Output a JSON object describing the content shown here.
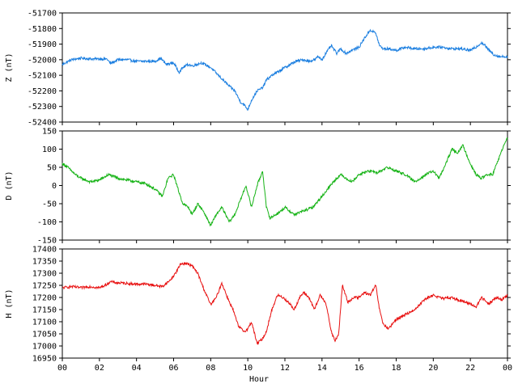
{
  "chart_data": [
    {
      "type": "line",
      "ylabel": "Z (nT)",
      "color": "#1c7fe0",
      "ylim": [
        -52400,
        -51700
      ],
      "yticks": [
        -51700,
        -51800,
        -51900,
        -52000,
        -52100,
        -52200,
        -52300,
        -52400
      ],
      "series": [
        {
          "x": [
            0,
            0.5,
            1,
            1.5,
            2,
            2.4,
            2.6,
            3,
            3.5,
            4,
            4.5,
            5,
            5.3,
            5.6,
            6,
            6.3,
            6.5,
            6.8,
            7,
            7.5,
            8,
            8.5,
            9,
            9.3,
            9.6,
            9.8,
            10,
            10.2,
            10.5,
            10.8,
            11,
            11.3,
            11.6,
            12,
            12.3,
            12.6,
            13,
            13.3,
            13.6,
            13.8,
            14,
            14.2,
            14.5,
            14.8,
            15,
            15.3,
            15.6,
            16,
            16.3,
            16.6,
            16.9,
            17.1,
            17.3,
            17.6,
            18,
            18.5,
            19,
            19.5,
            20,
            20.5,
            21,
            21.5,
            22,
            22.3,
            22.6,
            22.8,
            23,
            23.3,
            23.6,
            24
          ],
          "values": [
            -52030,
            -52000,
            -51990,
            -51995,
            -51995,
            -51995,
            -52025,
            -52000,
            -52000,
            -52010,
            -52010,
            -52010,
            -51990,
            -52030,
            -52020,
            -52080,
            -52050,
            -52030,
            -52040,
            -52020,
            -52050,
            -52110,
            -52170,
            -52200,
            -52270,
            -52290,
            -52320,
            -52260,
            -52200,
            -52180,
            -52130,
            -52100,
            -52080,
            -52050,
            -52030,
            -52010,
            -52000,
            -52010,
            -52000,
            -51980,
            -52000,
            -51960,
            -51910,
            -51960,
            -51930,
            -51960,
            -51940,
            -51920,
            -51860,
            -51810,
            -51830,
            -51910,
            -51930,
            -51930,
            -51940,
            -51920,
            -51930,
            -51930,
            -51920,
            -51920,
            -51930,
            -51930,
            -51940,
            -51920,
            -51890,
            -51910,
            -51940,
            -51970,
            -51980,
            -51980
          ]
        }
      ]
    },
    {
      "type": "line",
      "ylabel": "D (nT)",
      "color": "#16b316",
      "ylim": [
        -150,
        150
      ],
      "yticks": [
        150,
        100,
        50,
        0,
        -50,
        -100,
        -150
      ],
      "series": [
        {
          "x": [
            0,
            0.3,
            0.7,
            1,
            1.5,
            2,
            2.5,
            3,
            3.5,
            4,
            4.5,
            5,
            5.4,
            5.7,
            6,
            6.3,
            6.5,
            6.8,
            7,
            7.3,
            7.6,
            8,
            8.3,
            8.6,
            9,
            9.3,
            9.6,
            9.9,
            10.2,
            10.5,
            10.8,
            11,
            11.2,
            11.5,
            11.8,
            12,
            12.5,
            13,
            13.5,
            14,
            14.3,
            14.6,
            15,
            15.3,
            15.6,
            16,
            16.5,
            17,
            17.5,
            18,
            18.5,
            19,
            19.3,
            19.6,
            20,
            20.3,
            20.6,
            21,
            21.3,
            21.6,
            22,
            22.3,
            22.6,
            22.9,
            23.2,
            23.5,
            23.8,
            24
          ],
          "values": [
            60,
            50,
            30,
            20,
            10,
            15,
            30,
            20,
            15,
            10,
            5,
            -10,
            -30,
            20,
            30,
            -20,
            -50,
            -60,
            -80,
            -50,
            -70,
            -110,
            -80,
            -60,
            -100,
            -80,
            -40,
            0,
            -60,
            0,
            40,
            -60,
            -90,
            -80,
            -70,
            -60,
            -80,
            -70,
            -60,
            -30,
            -10,
            10,
            30,
            20,
            10,
            30,
            40,
            35,
            50,
            40,
            30,
            10,
            20,
            30,
            40,
            20,
            50,
            100,
            90,
            110,
            60,
            30,
            20,
            30,
            30,
            70,
            110,
            130
          ]
        }
      ]
    },
    {
      "type": "line",
      "ylabel": "H (nT)",
      "color": "#e81010",
      "ylim": [
        16950,
        17400
      ],
      "yticks": [
        17400,
        17350,
        17300,
        17250,
        17200,
        17150,
        17100,
        17050,
        17000,
        16950
      ],
      "series": [
        {
          "x": [
            0,
            0.5,
            1,
            1.5,
            2,
            2.3,
            2.6,
            3,
            3.5,
            4,
            4.5,
            5,
            5.4,
            5.8,
            6.1,
            6.4,
            6.7,
            7,
            7.3,
            7.6,
            8,
            8.3,
            8.6,
            8.9,
            9.2,
            9.5,
            9.8,
            10,
            10.2,
            10.5,
            10.8,
            11,
            11.3,
            11.6,
            11.9,
            12.2,
            12.5,
            12.8,
            13,
            13.3,
            13.6,
            13.9,
            14.2,
            14.5,
            14.7,
            14.9,
            15.1,
            15.4,
            15.7,
            16,
            16.3,
            16.6,
            16.9,
            17.1,
            17.3,
            17.6,
            18,
            18.5,
            19,
            19.5,
            20,
            20.5,
            21,
            21.5,
            22,
            22.3,
            22.6,
            23,
            23.4,
            23.7,
            24
          ],
          "values": [
            17240,
            17245,
            17240,
            17245,
            17240,
            17250,
            17265,
            17260,
            17258,
            17255,
            17255,
            17250,
            17245,
            17270,
            17300,
            17340,
            17340,
            17330,
            17300,
            17240,
            17170,
            17200,
            17260,
            17200,
            17150,
            17080,
            17060,
            17070,
            17100,
            17010,
            17030,
            17060,
            17150,
            17210,
            17200,
            17180,
            17150,
            17200,
            17220,
            17200,
            17150,
            17210,
            17180,
            17060,
            17020,
            17050,
            17250,
            17180,
            17200,
            17200,
            17220,
            17210,
            17250,
            17150,
            17090,
            17070,
            17110,
            17130,
            17150,
            17190,
            17210,
            17195,
            17200,
            17185,
            17175,
            17160,
            17200,
            17175,
            17200,
            17190,
            17210
          ]
        }
      ]
    }
  ],
  "x_axis": {
    "label": "Hour",
    "range": [
      0,
      24
    ],
    "ticks": [
      "00",
      "02",
      "04",
      "06",
      "08",
      "10",
      "12",
      "14",
      "16",
      "18",
      "20",
      "22",
      "00"
    ],
    "tick_hours": [
      0,
      2,
      4,
      6,
      8,
      10,
      12,
      14,
      16,
      18,
      20,
      22,
      24
    ]
  }
}
